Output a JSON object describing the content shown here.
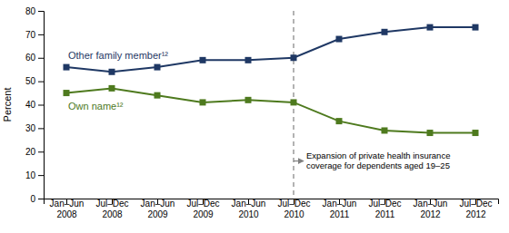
{
  "chart_data": {
    "type": "line",
    "y_label": "Percent",
    "categories": [
      "Jan–Jun\n2008",
      "Jul–Dec\n2008",
      "Jan–Jun\n2009",
      "Jul–Dec\n2009",
      "Jan–Jun\n2010",
      "Jul–Dec\n2010",
      "Jan–Jun\n2011",
      "Jul–Dec\n2011",
      "Jan–Jun\n2012",
      "Jul–Dec\n2012"
    ],
    "series": [
      {
        "name": "Other family member¹²",
        "color": "#1f3864",
        "marker": "square",
        "values": [
          56,
          54,
          56,
          59,
          59,
          60,
          68,
          71,
          73,
          73
        ]
      },
      {
        "name": "Own name¹²",
        "color": "#4e7a1e",
        "marker": "square",
        "values": [
          45,
          47,
          44,
          41,
          42,
          41,
          33,
          29,
          28,
          28
        ]
      }
    ],
    "ylim": [
      0,
      80
    ],
    "yticks": [
      0,
      10,
      20,
      30,
      40,
      50,
      60,
      70,
      80
    ],
    "annotations": [
      {
        "text": "Expansion of private health insurance\ncoverage for dependents aged 19–25",
        "x": "Jul–Dec\n2010",
        "y": 16
      }
    ]
  }
}
